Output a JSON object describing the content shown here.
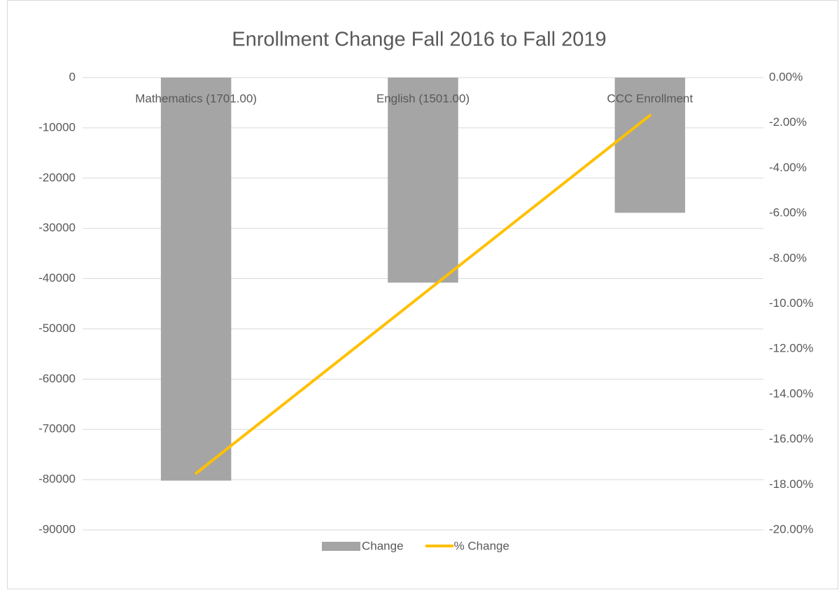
{
  "chart_data": {
    "type": "bar_line",
    "title": "Enrollment Change Fall 2016 to Fall 2019",
    "categories": [
      "Mathematics (1701.00)",
      "English (1501.00)",
      "CCC Enrollment"
    ],
    "series": [
      {
        "name": "Change",
        "type": "bar",
        "color": "#a5a5a5",
        "values": [
          -80200,
          -40800,
          -26900
        ]
      },
      {
        "name": "% Change",
        "type": "line",
        "axis": "y2",
        "color": "#ffc000",
        "values": [
          -17.5,
          -9.58,
          -1.67
        ]
      }
    ],
    "ylim": [
      -90000,
      0
    ],
    "yticks": [
      0,
      -10000,
      -20000,
      -30000,
      -40000,
      -50000,
      -60000,
      -70000,
      -80000,
      -90000
    ],
    "y2lim": [
      -20,
      0
    ],
    "y2ticks": [
      {
        "value": 0,
        "label": "0.00%"
      },
      {
        "value": -2,
        "label": "-2.00%"
      },
      {
        "value": -4,
        "label": "-4.00%"
      },
      {
        "value": -6,
        "label": "-6.00%"
      },
      {
        "value": -8,
        "label": "-8.00%"
      },
      {
        "value": -10,
        "label": "-10.00%"
      },
      {
        "value": -12,
        "label": "-12.00%"
      },
      {
        "value": -14,
        "label": "-14.00%"
      },
      {
        "value": -16,
        "label": "-16.00%"
      },
      {
        "value": -18,
        "label": "-18.00%"
      },
      {
        "value": -20,
        "label": "-20.00%"
      }
    ],
    "grid": true,
    "legend": "bottom"
  }
}
